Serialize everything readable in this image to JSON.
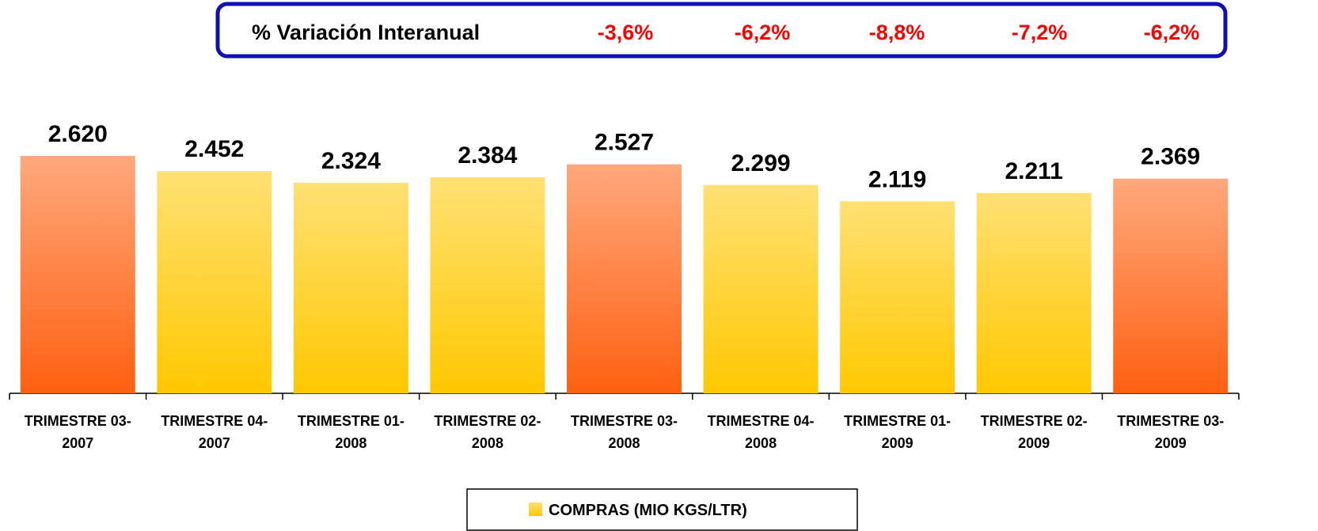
{
  "chart_data": {
    "type": "bar",
    "annotation": {
      "label": "% Variación Interanual",
      "values": [
        -3.6,
        -6.2,
        -8.8,
        -7.2,
        -6.2
      ],
      "value_labels": [
        "-3,6%",
        "-6,2%",
        "-8,8%",
        "-7,2%",
        "-6,2%"
      ]
    },
    "categories": [
      [
        "TRIMESTRE 03-",
        "2007"
      ],
      [
        "TRIMESTRE 04-",
        "2007"
      ],
      [
        "TRIMESTRE 01-",
        "2008"
      ],
      [
        "TRIMESTRE 02-",
        "2008"
      ],
      [
        "TRIMESTRE 03-",
        "2008"
      ],
      [
        "TRIMESTRE 04-",
        "2008"
      ],
      [
        "TRIMESTRE 01-",
        "2009"
      ],
      [
        "TRIMESTRE 02-",
        "2009"
      ],
      [
        "TRIMESTRE 03-",
        "2009"
      ]
    ],
    "series": [
      {
        "name": "COMPRAS (MIO KGS/LTR)",
        "color": "#ffc800",
        "values": [
          2620,
          2452,
          2324,
          2384,
          2527,
          2299,
          2119,
          2211,
          2369
        ],
        "value_labels": [
          "2.620",
          "2.452",
          "2.324",
          "2.384",
          "2.527",
          "2.299",
          "2.119",
          "2.211",
          "2.369"
        ],
        "colors": [
          "#ff6010",
          "#ffc800",
          "#ffc800",
          "#ffc800",
          "#ff6010",
          "#ffc800",
          "#ffc800",
          "#ffc800",
          "#ff6010"
        ]
      }
    ],
    "ylim": [
      0,
      3000
    ],
    "grid": false
  }
}
